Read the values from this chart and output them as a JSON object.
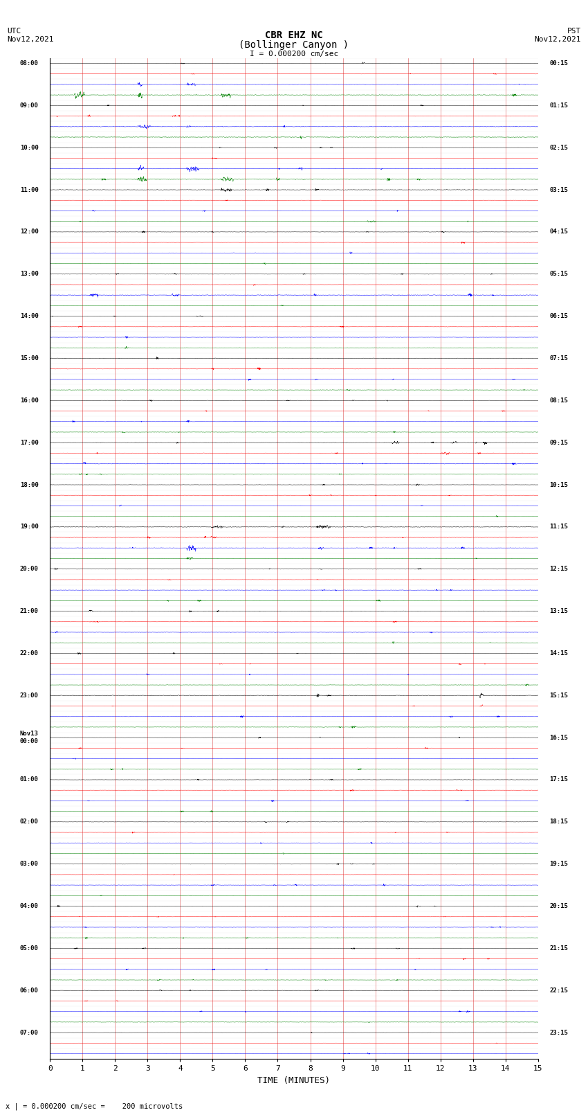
{
  "title_line1": "CBR EHZ NC",
  "title_line2": "(Bollinger Canyon )",
  "scale_label": "I = 0.000200 cm/sec",
  "utc_label": "UTC\nNov12,2021",
  "pst_label": "PST\nNov12,2021",
  "bottom_label": "x | = 0.000200 cm/sec =    200 microvolts",
  "xlabel": "TIME (MINUTES)",
  "x_ticks": [
    0,
    1,
    2,
    3,
    4,
    5,
    6,
    7,
    8,
    9,
    10,
    11,
    12,
    13,
    14,
    15
  ],
  "left_times": [
    "08:00",
    "",
    "",
    "",
    "09:00",
    "",
    "",
    "",
    "10:00",
    "",
    "",
    "",
    "11:00",
    "",
    "",
    "",
    "12:00",
    "",
    "",
    "",
    "13:00",
    "",
    "",
    "",
    "14:00",
    "",
    "",
    "",
    "15:00",
    "",
    "",
    "",
    "16:00",
    "",
    "",
    "",
    "17:00",
    "",
    "",
    "",
    "18:00",
    "",
    "",
    "",
    "19:00",
    "",
    "",
    "",
    "20:00",
    "",
    "",
    "",
    "21:00",
    "",
    "",
    "",
    "22:00",
    "",
    "",
    "",
    "23:00",
    "",
    "",
    "",
    "Nov13\n00:00",
    "",
    "",
    "",
    "01:00",
    "",
    "",
    "",
    "02:00",
    "",
    "",
    "",
    "03:00",
    "",
    "",
    "",
    "04:00",
    "",
    "",
    "",
    "05:00",
    "",
    "",
    "",
    "06:00",
    "",
    "",
    "",
    "07:00",
    "",
    ""
  ],
  "right_times": [
    "00:15",
    "",
    "",
    "",
    "01:15",
    "",
    "",
    "",
    "02:15",
    "",
    "",
    "",
    "03:15",
    "",
    "",
    "",
    "04:15",
    "",
    "",
    "",
    "05:15",
    "",
    "",
    "",
    "06:15",
    "",
    "",
    "",
    "07:15",
    "",
    "",
    "",
    "08:15",
    "",
    "",
    "",
    "09:15",
    "",
    "",
    "",
    "10:15",
    "",
    "",
    "",
    "11:15",
    "",
    "",
    "",
    "12:15",
    "",
    "",
    "",
    "13:15",
    "",
    "",
    "",
    "14:15",
    "",
    "",
    "",
    "15:15",
    "",
    "",
    "",
    "16:15",
    "",
    "",
    "",
    "17:15",
    "",
    "",
    "",
    "18:15",
    "",
    "",
    "",
    "19:15",
    "",
    "",
    "",
    "20:15",
    "",
    "",
    "",
    "21:15",
    "",
    "",
    "",
    "22:15",
    "",
    "",
    "",
    "23:15",
    "",
    ""
  ],
  "trace_color_cycle": [
    "black",
    "red",
    "blue",
    "green"
  ],
  "n_rows": 95,
  "n_samples": 3000,
  "base_noise": 0.012,
  "bg_color": "white",
  "vline_color": "#cc0000",
  "hline_color": "#888888"
}
